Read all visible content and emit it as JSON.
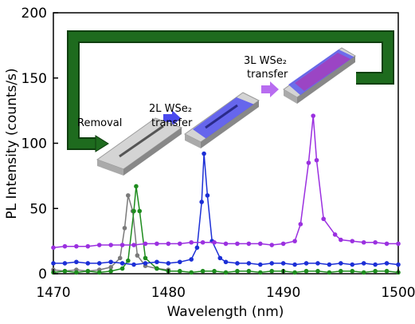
{
  "chart_data": {
    "type": "line",
    "x_label": "Wavelength (nm)",
    "y_label": "PL Intensity (counts/s)",
    "xlim": [
      1470,
      1500
    ],
    "xticks": [
      1470,
      1480,
      1490,
      1500
    ],
    "ylim": [
      0,
      200
    ],
    "yticks": [
      0,
      50,
      100,
      150,
      200
    ],
    "annotations": [
      [
        "Removal"
      ],
      [
        "2L WSe₂",
        "transfer"
      ],
      [
        "3L WSe₂",
        "transfer"
      ]
    ],
    "series": [
      {
        "color": "#7a7a7a",
        "x": [
          1470,
          1471,
          1472,
          1473,
          1474,
          1475,
          1475.8,
          1476.2,
          1476.5,
          1476.9,
          1477.3,
          1478,
          1479,
          1480
        ],
        "values": [
          3,
          2,
          3,
          2,
          3,
          5,
          12,
          35,
          60,
          48,
          14,
          6,
          4,
          3
        ]
      },
      {
        "color": "#1e8c1e",
        "x": [
          1470,
          1471,
          1472,
          1473,
          1474,
          1475,
          1476,
          1476.5,
          1477,
          1477.2,
          1477.5,
          1478,
          1479,
          1480,
          1481,
          1482,
          1483,
          1484,
          1485,
          1486,
          1487,
          1488,
          1489,
          1490,
          1491,
          1492,
          1493,
          1494,
          1495,
          1496,
          1497,
          1498,
          1499,
          1500
        ],
        "values": [
          1,
          2,
          1,
          2,
          1,
          2,
          4,
          10,
          48,
          67,
          48,
          12,
          4,
          2,
          2,
          1,
          2,
          2,
          1,
          2,
          2,
          1,
          2,
          2,
          1,
          2,
          2,
          1,
          2,
          2,
          1,
          2,
          2,
          1
        ]
      },
      {
        "color": "#1c2fd6",
        "x": [
          1470,
          1471,
          1472,
          1473,
          1474,
          1475,
          1476,
          1477,
          1478,
          1479,
          1480,
          1481,
          1482,
          1482.5,
          1482.9,
          1483.1,
          1483.4,
          1483.8,
          1484.5,
          1485,
          1486,
          1487,
          1488,
          1489,
          1490,
          1491,
          1492,
          1493,
          1494,
          1495,
          1496,
          1497,
          1498,
          1499,
          1500
        ],
        "values": [
          8,
          8,
          9,
          8,
          8,
          9,
          8,
          7,
          8,
          9,
          8,
          9,
          11,
          20,
          55,
          92,
          60,
          25,
          12,
          9,
          8,
          8,
          7,
          8,
          8,
          7,
          8,
          8,
          7,
          8,
          7,
          8,
          7,
          8,
          7
        ]
      },
      {
        "color": "#9b30e0",
        "x": [
          1470,
          1471,
          1472,
          1473,
          1474,
          1475,
          1476,
          1477,
          1478,
          1479,
          1480,
          1481,
          1482,
          1483,
          1484,
          1485,
          1486,
          1487,
          1488,
          1489,
          1490,
          1491,
          1491.5,
          1492.2,
          1492.6,
          1492.9,
          1493.5,
          1494.5,
          1495,
          1496,
          1497,
          1498,
          1499,
          1500
        ],
        "values": [
          20,
          21,
          21,
          21,
          22,
          22,
          22,
          22,
          23,
          23,
          23,
          23,
          24,
          24,
          24,
          23,
          23,
          23,
          23,
          22,
          23,
          25,
          38,
          85,
          121,
          87,
          42,
          30,
          26,
          25,
          24,
          24,
          23,
          23
        ]
      }
    ]
  }
}
